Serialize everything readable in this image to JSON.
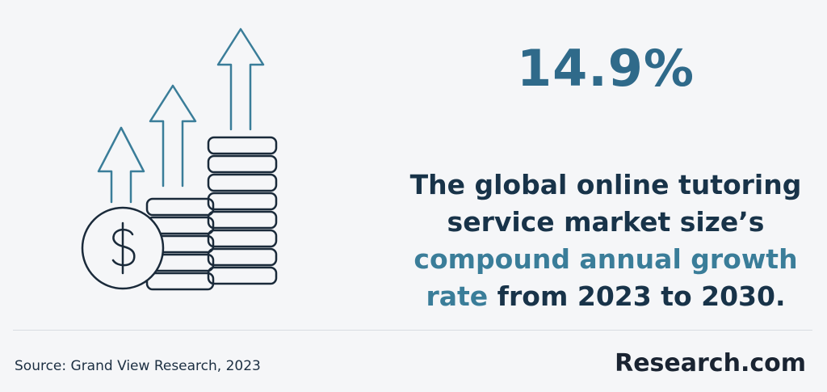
{
  "stat": {
    "value": "14.9%"
  },
  "description": {
    "line1": "The global online tutoring",
    "line2": "service market size’s",
    "accent_1": "compound annual growth",
    "accent_2": "rate",
    "tail": " from 2023 to 2030."
  },
  "footer": {
    "source": "Source: Grand View Research, 2023",
    "brand": "Research.com"
  },
  "icons": {
    "illustration": "money-growth-icon",
    "dollar": "dollar-coin-icon",
    "arrows": "up-arrow-icon"
  },
  "colors": {
    "accent": "#3a7d99",
    "stat": "#2f6a8a",
    "text": "#183349",
    "background": "#f5f6f8"
  }
}
